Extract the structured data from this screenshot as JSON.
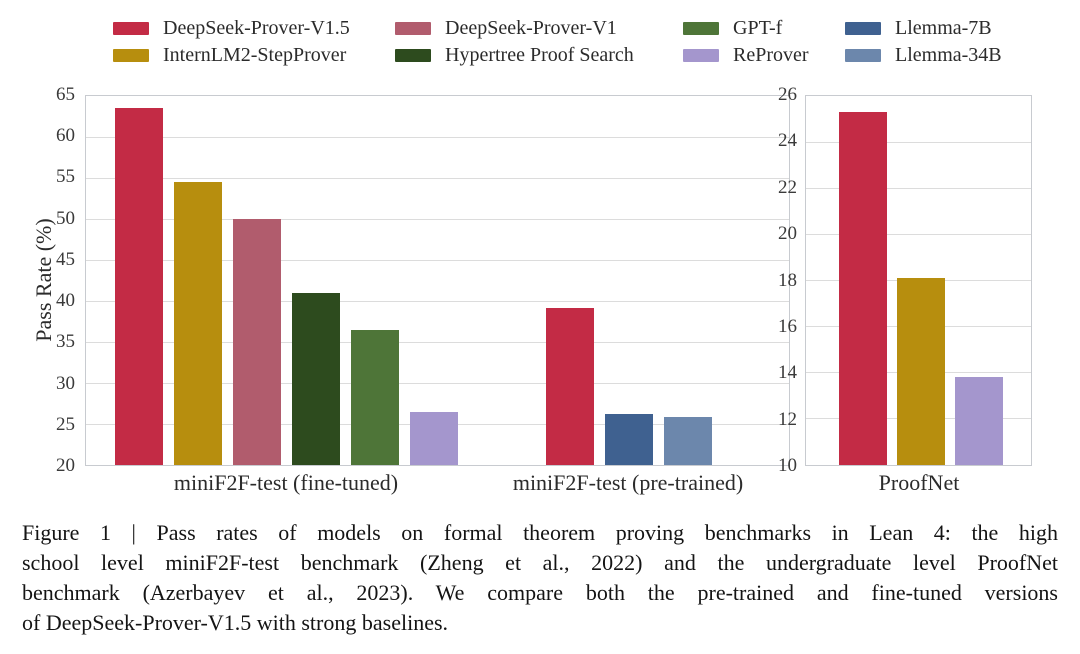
{
  "figure": {
    "caption": {
      "lines": [
        "Figure 1 | Pass rates of models on formal theorem proving benchmarks in Lean 4: the high",
        "school level miniF2F-test benchmark (Zheng et al., 2022) and the undergraduate level ProofNet",
        "benchmark (Azerbayev et al., 2023). We compare both the pre-trained and fine-tuned versions",
        "of DeepSeek-Prover-V1.5 with strong baselines."
      ]
    }
  },
  "legend": {
    "position": "top",
    "columns": [
      [
        "DeepSeek-Prover-V1.5",
        "InternLM2-StepProver"
      ],
      [
        "DeepSeek-Prover-V1",
        "Hypertree Proof Search"
      ],
      [
        "GPT-f",
        "ReProver"
      ],
      [
        "Llemma-7B",
        "Llemma-34B"
      ]
    ]
  },
  "colors": {
    "DeepSeek-Prover-V1.5": "#c32b45",
    "InternLM2-StepProver": "#b78e0e",
    "DeepSeek-Prover-V1": "#b15c6d",
    "Hypertree Proof Search": "#2d4b1e",
    "GPT-f": "#4e7538",
    "ReProver": "#a496cd",
    "Llemma-7B": "#3f6190",
    "Llemma-34B": "#6c87ac",
    "grid": "#dcdcdc",
    "spine": "#c8cbd0",
    "text": "#2b2b2b"
  },
  "chart_data": [
    {
      "type": "bar",
      "title": "",
      "xlabel": "",
      "ylabel": "Pass Rate (%)",
      "ylim": [
        20,
        65
      ],
      "yticks": [
        20,
        25,
        30,
        35,
        40,
        45,
        50,
        55,
        60,
        65
      ],
      "grid": true,
      "legend_position": "top",
      "groups": [
        {
          "label": "miniF2F-test (fine-tuned)",
          "bars": [
            {
              "model": "DeepSeek-Prover-V1.5",
              "value": 63.5
            },
            {
              "model": "InternLM2-StepProver",
              "value": 54.5
            },
            {
              "model": "DeepSeek-Prover-V1",
              "value": 50.0
            },
            {
              "model": "Hypertree Proof Search",
              "value": 41.0
            },
            {
              "model": "GPT-f",
              "value": 36.5
            },
            {
              "model": "ReProver",
              "value": 26.5
            }
          ]
        },
        {
          "label": "miniF2F-test (pre-trained)",
          "bars": [
            {
              "model": "DeepSeek-Prover-V1.5",
              "value": 39.2
            },
            {
              "model": "Llemma-7B",
              "value": 26.2
            },
            {
              "model": "Llemma-34B",
              "value": 25.8
            }
          ]
        }
      ]
    },
    {
      "type": "bar",
      "title": "",
      "xlabel": "",
      "ylabel": "",
      "ylim": [
        10,
        26
      ],
      "yticks": [
        10,
        12,
        14,
        16,
        18,
        20,
        22,
        24,
        26
      ],
      "grid": true,
      "groups": [
        {
          "label": "ProofNet",
          "bars": [
            {
              "model": "DeepSeek-Prover-V1.5",
              "value": 25.3
            },
            {
              "model": "InternLM2-StepProver",
              "value": 18.1
            },
            {
              "model": "ReProver",
              "value": 13.8
            }
          ]
        }
      ]
    }
  ]
}
